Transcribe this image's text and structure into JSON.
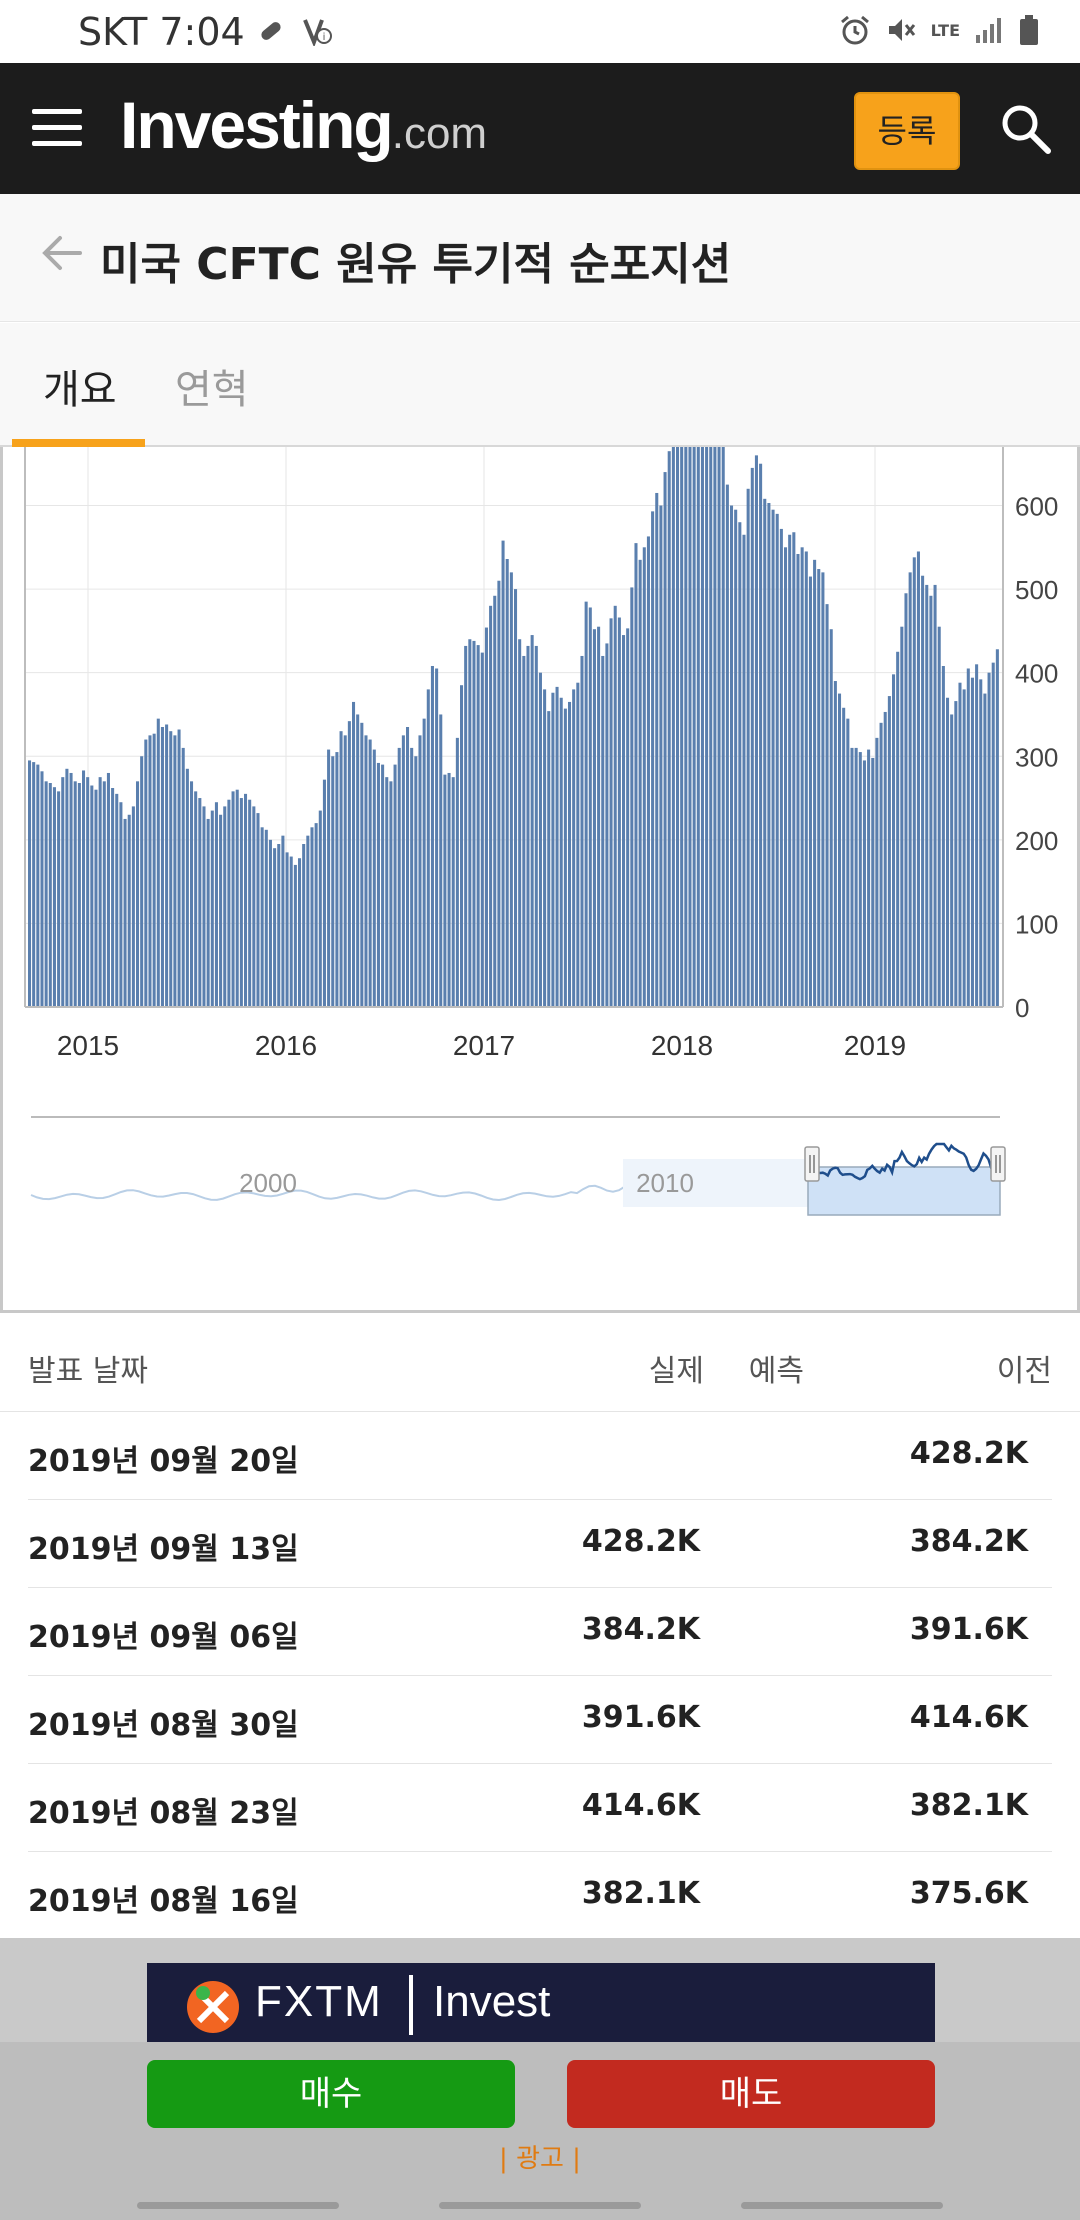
{
  "status_bar": {
    "carrier_time": "SKT 7:04",
    "network": "LTE",
    "icons_left": [
      "pill-icon",
      "notification-icon"
    ],
    "icons_right": [
      "alarm-icon",
      "mute-icon",
      "lte-icon",
      "signal-icon",
      "battery-icon"
    ]
  },
  "header": {
    "logo_main": "Investing",
    "logo_suffix": ".com",
    "register_label": "등록",
    "accent_color": "#f7a21b",
    "background_color": "#1c1c1c"
  },
  "page": {
    "title": "미국 CFTC 원유 투기적 순포지션"
  },
  "tabs": [
    {
      "label": "개요",
      "active": true
    },
    {
      "label": "연혁",
      "active": false
    }
  ],
  "chart_data": {
    "type": "bar",
    "bar_color": "#5a7fae",
    "x_tick_labels": [
      "2015",
      "2016",
      "2017",
      "2018",
      "2019"
    ],
    "y_tick_labels": [
      "0",
      "100",
      "200",
      "300",
      "400",
      "500",
      "600"
    ],
    "ylim": [
      0,
      670
    ],
    "grid": true,
    "values": [
      295,
      293,
      290,
      282,
      270,
      268,
      263,
      258,
      275,
      285,
      280,
      270,
      268,
      283,
      275,
      265,
      260,
      275,
      270,
      280,
      262,
      255,
      245,
      225,
      230,
      240,
      270,
      300,
      320,
      325,
      327,
      345,
      335,
      338,
      330,
      325,
      332,
      310,
      285,
      270,
      258,
      250,
      240,
      225,
      235,
      245,
      230,
      240,
      248,
      258,
      260,
      250,
      255,
      248,
      240,
      232,
      215,
      212,
      200,
      190,
      195,
      205,
      185,
      180,
      170,
      178,
      195,
      205,
      215,
      220,
      235,
      272,
      308,
      300,
      305,
      330,
      325,
      342,
      365,
      350,
      340,
      325,
      320,
      308,
      292,
      290,
      275,
      270,
      290,
      310,
      325,
      335,
      310,
      300,
      325,
      345,
      380,
      408,
      405,
      350,
      278,
      280,
      275,
      322,
      385,
      432,
      440,
      438,
      433,
      424,
      454,
      480,
      492,
      510,
      558,
      536,
      520,
      500,
      440,
      420,
      432,
      445,
      432,
      400,
      380,
      354,
      376,
      383,
      370,
      357,
      365,
      380,
      388,
      420,
      485,
      478,
      452,
      455,
      420,
      435,
      465,
      480,
      466,
      445,
      453,
      502,
      555,
      535,
      550,
      563,
      593,
      615,
      600,
      640,
      665,
      670,
      670,
      670,
      670,
      670,
      670,
      670,
      670,
      670,
      670,
      670,
      670,
      670,
      625,
      600,
      595,
      580,
      565,
      620,
      645,
      660,
      650,
      608,
      603,
      595,
      590,
      572,
      550,
      565,
      568,
      542,
      550,
      545,
      515,
      535,
      524,
      520,
      482,
      452,
      390,
      375,
      358,
      345,
      310,
      310,
      305,
      295,
      308,
      298,
      322,
      340,
      353,
      372,
      398,
      425,
      455,
      495,
      520,
      538,
      545,
      516,
      505,
      492,
      505,
      455,
      408,
      370,
      350,
      366,
      388,
      380,
      405,
      394,
      410,
      392,
      375,
      400,
      412,
      428
    ],
    "navigator": {
      "labels": [
        "2000",
        "2010"
      ],
      "range_handles": [
        "start",
        "end"
      ]
    }
  },
  "table": {
    "headers": {
      "date": "발표 날짜",
      "actual": "실제",
      "forecast": "예측",
      "previous": "이전"
    },
    "rows": [
      {
        "date": "2019년 09월 20일",
        "actual": "",
        "previous": "428.2K"
      },
      {
        "date": "2019년 09월 13일",
        "actual": "428.2K",
        "previous": "384.2K"
      },
      {
        "date": "2019년 09월 06일",
        "actual": "384.2K",
        "previous": "391.6K"
      },
      {
        "date": "2019년 08월 30일",
        "actual": "391.6K",
        "previous": "414.6K"
      },
      {
        "date": "2019년 08월 23일",
        "actual": "414.6K",
        "previous": "382.1K"
      },
      {
        "date": "2019년 08월 16일",
        "actual": "382.1K",
        "previous": "375.6K"
      }
    ]
  },
  "ad": {
    "brand": "FXTM",
    "tagline": "Invest",
    "buy_label": "매수",
    "sell_label": "매도",
    "ad_label": "| 광고 |",
    "buy_color": "#159a13",
    "sell_color": "#c22a1f"
  }
}
